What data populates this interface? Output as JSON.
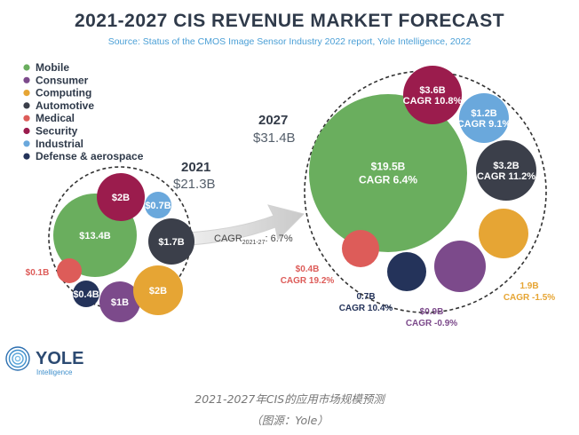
{
  "header": {
    "title": "2021-2027 CIS REVENUE MARKET FORECAST",
    "source": "Source: Status of the CMOS Image Sensor Industry 2022 report, Yole Intelligence, 2022"
  },
  "legend": [
    {
      "label": "Mobile",
      "color": "#6aae5e"
    },
    {
      "label": "Consumer",
      "color": "#7c4a8b"
    },
    {
      "label": "Computing",
      "color": "#e6a534"
    },
    {
      "label": "Automotive",
      "color": "#3b3f4a"
    },
    {
      "label": "Medical",
      "color": "#dd5c59"
    },
    {
      "label": "Security",
      "color": "#9b1c4d"
    },
    {
      "label": "Industrial",
      "color": "#6aa8dc"
    },
    {
      "label": "Defense & aerospace",
      "color": "#24335a"
    }
  ],
  "chart_data": {
    "type": "bubble",
    "title": "2021-2027 CIS REVENUE MARKET FORECAST",
    "unit": "$B",
    "segments": [
      "Mobile",
      "Consumer",
      "Computing",
      "Automotive",
      "Medical",
      "Security",
      "Industrial",
      "Defense & aerospace"
    ],
    "years": [
      {
        "year": "2021",
        "total_label": "$21.3B",
        "values": [
          {
            "segment": "Mobile",
            "value": 13.4,
            "label": "$13.4B"
          },
          {
            "segment": "Consumer",
            "value": 1,
            "label": "$1B"
          },
          {
            "segment": "Computing",
            "value": 2,
            "label": "$2B"
          },
          {
            "segment": "Automotive",
            "value": 1.7,
            "label": "$1.7B"
          },
          {
            "segment": "Medical",
            "value": 0.1,
            "label": "$0.1B"
          },
          {
            "segment": "Security",
            "value": 2,
            "label": "$2B"
          },
          {
            "segment": "Industrial",
            "value": 0.7,
            "label": "$0.7B"
          },
          {
            "segment": "Defense & aerospace",
            "value": 0.4,
            "label": "$0.4B"
          }
        ]
      },
      {
        "year": "2027",
        "total_label": "$31.4B",
        "values": [
          {
            "segment": "Mobile",
            "value": 19.5,
            "label": "$19.5B",
            "cagr": "CAGR 6.4%"
          },
          {
            "segment": "Consumer",
            "value": 0.9,
            "label": "$0.9B",
            "cagr": "CAGR -0.9%"
          },
          {
            "segment": "Computing",
            "value": 1.9,
            "label": "1.9B",
            "cagr": "CAGR -1.5%"
          },
          {
            "segment": "Automotive",
            "value": 3.2,
            "label": "$3.2B",
            "cagr": "CAGR 11.2%"
          },
          {
            "segment": "Medical",
            "value": 0.4,
            "label": "$0.4B",
            "cagr": "CAGR 19.2%"
          },
          {
            "segment": "Security",
            "value": 3.6,
            "label": "$3.6B",
            "cagr": "CAGR 10.8%"
          },
          {
            "segment": "Industrial",
            "value": 1.2,
            "label": "$1.2B",
            "cagr": "CAGR 9.1%"
          },
          {
            "segment": "Defense & aerospace",
            "value": 0.7,
            "label": "0.7B",
            "cagr": "CAGR 10.4%"
          }
        ]
      }
    ],
    "overall_cagr": {
      "prefix": "CAGR",
      "sub": "2021-27",
      "value": ": 6.7%"
    }
  },
  "logo": {
    "name": "YOLE",
    "sub": "Intelligence"
  },
  "caption": {
    "line1": "2021-2027年CIS的应用市场规模预测",
    "line2": "（图源：Yole）"
  }
}
